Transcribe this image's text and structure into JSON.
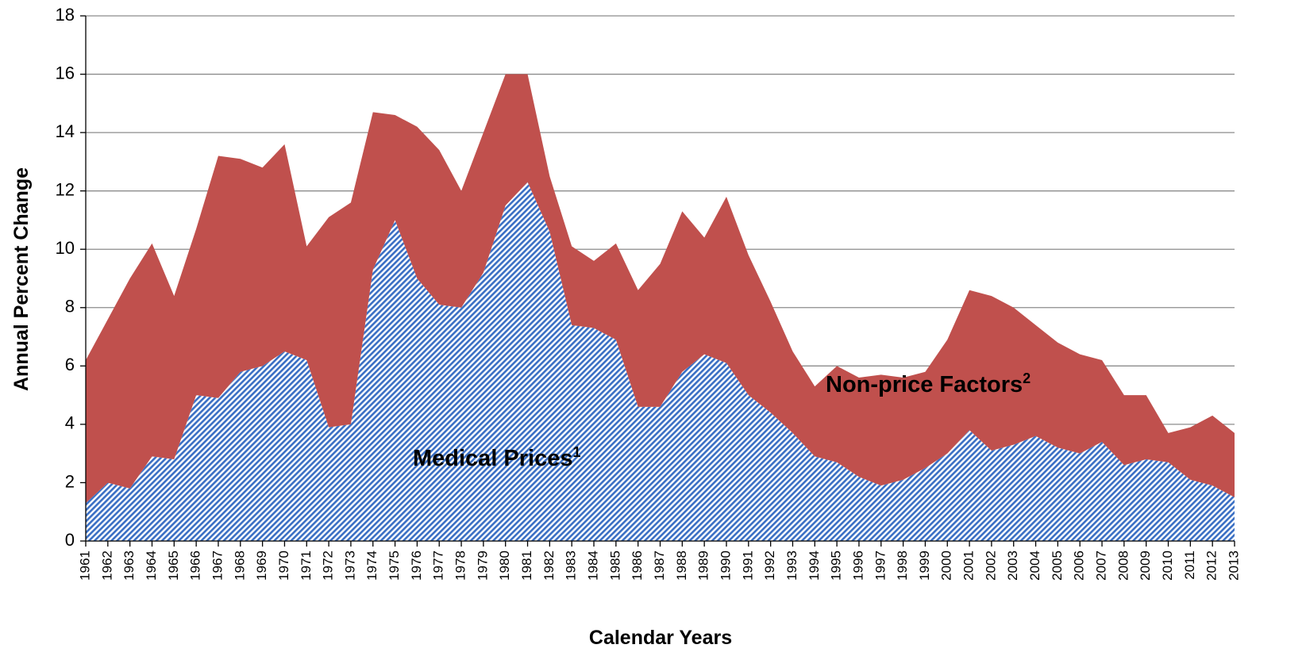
{
  "chart_data": {
    "type": "stacked-area",
    "xlabel": "Calendar Years",
    "ylabel": "Annual Percent Change",
    "categories": [
      "1961",
      "1962",
      "1963",
      "1964",
      "1965",
      "1966",
      "1967",
      "1968",
      "1969",
      "1970",
      "1971",
      "1972",
      "1973",
      "1974",
      "1975",
      "1976",
      "1977",
      "1978",
      "1979",
      "1980",
      "1981",
      "1982",
      "1983",
      "1984",
      "1985",
      "1986",
      "1987",
      "1988",
      "1989",
      "1990",
      "1991",
      "1992",
      "1993",
      "1994",
      "1995",
      "1996",
      "1997",
      "1998",
      "1999",
      "2000",
      "2001",
      "2002",
      "2003",
      "2004",
      "2005",
      "2006",
      "2007",
      "2008",
      "2009",
      "2010",
      "2011",
      "2012",
      "2013"
    ],
    "series": [
      {
        "name": "Medical Prices",
        "footnote": "1",
        "color": "#3a6fc4",
        "pattern": "hatch",
        "values": [
          1.3,
          2.0,
          1.8,
          2.9,
          2.8,
          5.0,
          4.9,
          5.8,
          6.0,
          6.5,
          6.2,
          3.9,
          4.0,
          9.3,
          11.0,
          9.0,
          8.1,
          8.0,
          9.2,
          11.5,
          12.3,
          10.6,
          7.4,
          7.3,
          6.9,
          4.6,
          4.6,
          5.8,
          6.4,
          6.1,
          5.0,
          4.4,
          3.7,
          2.9,
          2.7,
          2.2,
          1.9,
          2.1,
          2.5,
          3.0,
          3.8,
          3.1,
          3.3,
          3.6,
          3.2,
          3.0,
          3.4,
          2.6,
          2.8,
          2.7,
          2.1,
          1.9,
          1.5
        ]
      },
      {
        "name": "Non-price Factors",
        "footnote": "2",
        "color": "#c0504d",
        "pattern": "solid",
        "values": [
          4.9,
          5.6,
          7.2,
          7.3,
          5.6,
          5.7,
          8.3,
          7.3,
          6.8,
          7.1,
          3.9,
          7.2,
          7.6,
          5.4,
          3.6,
          5.2,
          5.3,
          4.0,
          4.8,
          4.5,
          3.7,
          1.9,
          2.7,
          2.3,
          3.3,
          4.0,
          4.9,
          5.5,
          4.0,
          5.7,
          4.8,
          3.8,
          2.8,
          2.4,
          3.3,
          3.4,
          3.8,
          3.5,
          3.3,
          3.9,
          4.8,
          5.3,
          4.7,
          3.8,
          3.6,
          3.4,
          2.8,
          2.4,
          2.2,
          1.0,
          1.8,
          2.4,
          2.2
        ]
      }
    ],
    "ylim": [
      0,
      18
    ],
    "yticks": [
      0,
      2,
      4,
      6,
      8,
      10,
      12,
      14,
      16,
      18
    ],
    "grid": true
  }
}
